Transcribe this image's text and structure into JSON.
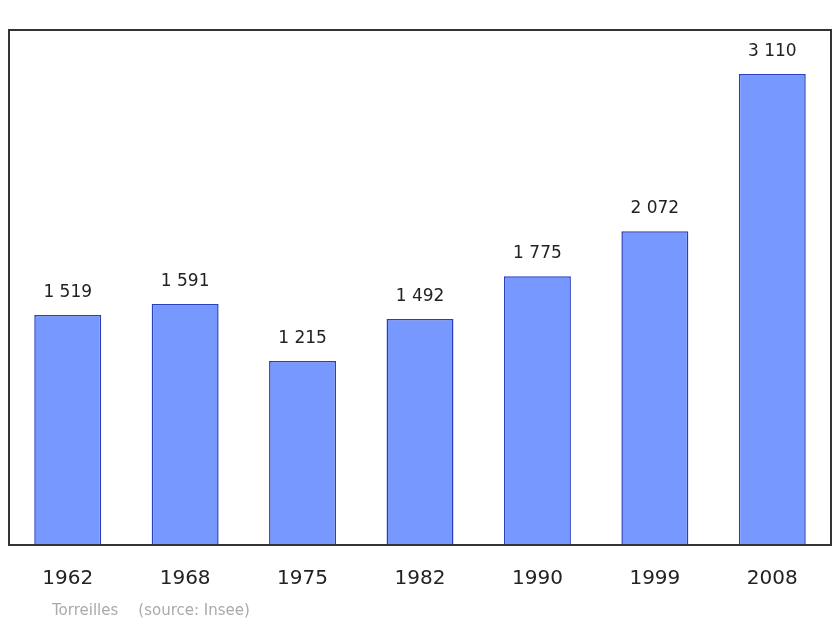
{
  "chart_data": {
    "type": "bar",
    "categories": [
      "1962",
      "1968",
      "1975",
      "1982",
      "1990",
      "1999",
      "2008"
    ],
    "values": [
      1519,
      1591,
      1215,
      1492,
      1775,
      2072,
      3110
    ],
    "value_labels": [
      "1 519",
      "1 591",
      "1 215",
      "1 492",
      "1 775",
      "2 072",
      "3 110"
    ],
    "data_labels": true,
    "color": "#7799ff",
    "ylim": [
      0,
      3400
    ],
    "grid": false,
    "tick_labels": "x",
    "annotations": [
      "Torreilles",
      "(source: Insee)"
    ]
  }
}
